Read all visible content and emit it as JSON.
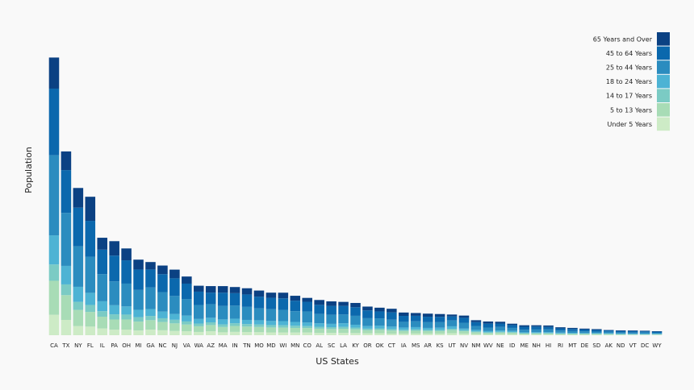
{
  "chart_data": {
    "type": "stacked-bar",
    "x_label": "US States",
    "y_label": "Population",
    "categories": [
      "CA",
      "TX",
      "NY",
      "FL",
      "IL",
      "PA",
      "OH",
      "MI",
      "GA",
      "NC",
      "NJ",
      "VA",
      "WA",
      "AZ",
      "MA",
      "IN",
      "TN",
      "MO",
      "MD",
      "WI",
      "MN",
      "CO",
      "AL",
      "SC",
      "LA",
      "KY",
      "OR",
      "OK",
      "CT",
      "IA",
      "MS",
      "AR",
      "KS",
      "UT",
      "NV",
      "NM",
      "WV",
      "NE",
      "ID",
      "ME",
      "NH",
      "HI",
      "RI",
      "MT",
      "DE",
      "SD",
      "AK",
      "ND",
      "VT",
      "DC",
      "WY"
    ],
    "ylim": [
      0,
      40000000
    ],
    "legend": "top-right",
    "series": [
      {
        "name": "Under 5 Years",
        "color": "#cdebc6",
        "values": [
          2704659,
          2027307,
          1208495,
          1140516,
          894368,
          737462,
          743750,
          625526,
          740521,
          652823,
          557421,
          522672,
          433119,
          515910,
          383568,
          443089,
          416334,
          399985,
          371787,
          362277,
          358471,
          358280,
          310504,
          303024,
          310716,
          284601,
          243483,
          266547,
          211637,
          201321,
          220813,
          202070,
          202529,
          268916,
          199175,
          148323,
          105435,
          132092,
          121746,
          71459,
          75297,
          87207,
          60934,
          61114,
          59319,
          58566,
          52083,
          41896,
          32635,
          36352,
          38253
        ]
      },
      {
        "name": "5 to 13 Years",
        "color": "#a8dcb6",
        "values": [
          4499890,
          3277946,
          2141490,
          1938695,
          1558919,
          1345341,
          1340492,
          1179503,
          1250460,
          1097890,
          1011656,
          887525,
          750274,
          828669,
          701752,
          780199,
          725948,
          690476,
          651923,
          640286,
          606802,
          587154,
          552339,
          517803,
          542341,
          493536,
          424167,
          438926,
          403658,
          345409,
          371502,
          343207,
          342134,
          413034,
          325650,
          241326,
          189649,
          215265,
          201192,
          133656,
          144235,
          134025,
          111408,
          106088,
          99496,
          94438,
          85640,
          67358,
          62538,
          50439,
          60890
        ]
      },
      {
        "name": "14 to 17 Years",
        "color": "#7bcbc4",
        "values": [
          2159981,
          1420518,
          1058031,
          925060,
          725973,
          679201,
          646135,
          585169,
          557860,
          492964,
          478505,
          413004,
          357782,
          362642,
          341713,
          361393,
          336312,
          331543,
          316873,
          311849,
          289371,
          261701,
          259034,
          245400,
          254916,
          229927,
          199925,
          200562,
          196918,
          165883,
          174405,
          157204,
          155822,
          167685,
          142976,
          112801,
          91074,
          99638,
          89702,
          69752,
          73826,
          64011,
          56198,
          53156,
          47414,
          45305,
          42153,
          33794,
          33757,
          25225,
          29314
        ]
      },
      {
        "name": "18 to 24 Years",
        "color": "#4db3d4",
        "values": [
          3853788,
          2454721,
          1999120,
          1607297,
          1311479,
          1203944,
          1081734,
          974480,
          919876,
          883397,
          769321,
          768475,
          610378,
          601943,
          665879,
          605863,
          550612,
          560463,
          543470,
          553914,
          507289,
          466194,
          450818,
          438147,
          471275,
          381394,
          338162,
          369916,
          325110,
          306398,
          305964,
          264160,
          293114,
          329585,
          212379,
          203097,
          157989,
          186657,
          147606,
          112682,
          119114,
          124834,
          114502,
          95232,
          84464,
          82869,
          74257,
          82629,
          61679,
          75569,
          53980
        ]
      },
      {
        "name": "25 to 44 Years",
        "color": "#2b8cbf",
        "values": [
          10604510,
          7017731,
          5355235,
          4782119,
          3596343,
          3157759,
          3019147,
          2628322,
          2846985,
          2575603,
          2379649,
          2203286,
          1850983,
          1804762,
          1782449,
          1724528,
          1719433,
          1569626,
          1556225,
          1487457,
          1416063,
          1464939,
          1231572,
          1193112,
          1162463,
          1179637,
          1044056,
          957085,
          916955,
          750505,
          764203,
          754420,
          728166,
          772024,
          769913,
          517154,
          470749,
          457177,
          406247,
          331809,
          345109,
          356237,
          277779,
          236297,
          230183,
          196738,
          198724,
          154913,
          155419,
          193557,
          137338
        ]
      },
      {
        "name": "45 to 64 Years",
        "color": "#0b68ad",
        "values": [
          8819342,
          5656528,
          5120254,
          4746856,
          3239173,
          3414001,
          3083815,
          2706100,
          2389018,
          2380685,
          2335168,
          2033550,
          1762811,
          1523681,
          1751508,
          1647881,
          1646623,
          1554812,
          1513754,
          1522038,
          1391878,
          1290094,
          1215966,
          1186019,
          1128771,
          1134283,
          1036269,
          918688,
          968967,
          788485,
          730133,
          727124,
          713663,
          538978,
          653357,
          501604,
          514505,
          451756,
          375173,
          397911,
          388250,
          331817,
          282321,
          278241,
          230528,
          210178,
          183159,
          166615,
          188593,
          140043,
          147279
        ]
      },
      {
        "name": "65 Years and Over",
        "color": "#0b4183",
        "values": [
          4114496,
          2472223,
          2607672,
          3187797,
          1575308,
          1910571,
          1570837,
          1304322,
          981024,
          1139052,
          1150941,
          940577,
          783877,
          862573,
          871098,
          813839,
          819626,
          805235,
          679565,
          750146,
          650519,
          511094,
          641667,
          596295,
          540314,
          565867,
          503998,
          490637,
          478007,
          444554,
          371315,
          407205,
          366706,
          246202,
          296717,
          260051,
          285067,
          240847,
          182150,
          199187,
          169978,
          190067,
          147646,
          137312,
          121688,
          116100,
          50277,
          94276,
          86649,
          70648,
          65614
        ]
      }
    ]
  }
}
